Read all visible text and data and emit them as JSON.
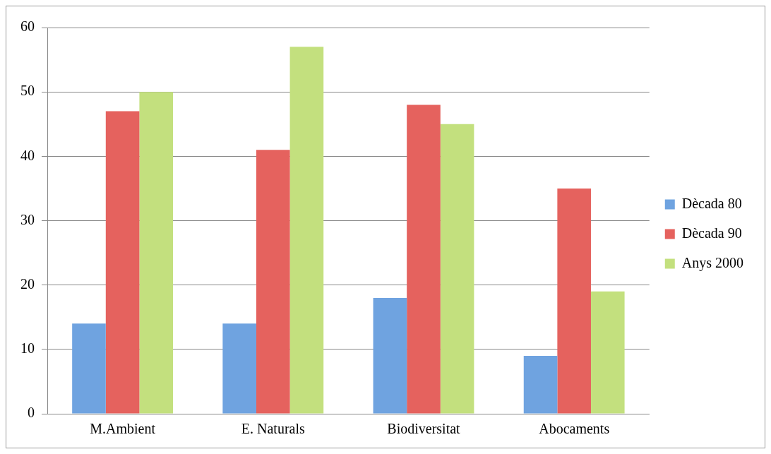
{
  "chart_data": {
    "type": "bar",
    "categories": [
      "M.Ambient",
      "E. Naturals",
      "Biodiversitat",
      "Abocaments"
    ],
    "series": [
      {
        "name": "Dècada 80",
        "color": "#6fa3e0",
        "values": [
          14,
          14,
          18,
          9
        ]
      },
      {
        "name": "Dècada 90",
        "color": "#e5625e",
        "values": [
          47,
          41,
          48,
          35
        ]
      },
      {
        "name": "Anys 2000",
        "color": "#c3e07e",
        "values": [
          50,
          57,
          45,
          19
        ]
      }
    ],
    "ylim": [
      0,
      60
    ],
    "yticks": [
      0,
      10,
      20,
      30,
      40,
      50,
      60
    ],
    "grid": "y",
    "legend": "right"
  }
}
